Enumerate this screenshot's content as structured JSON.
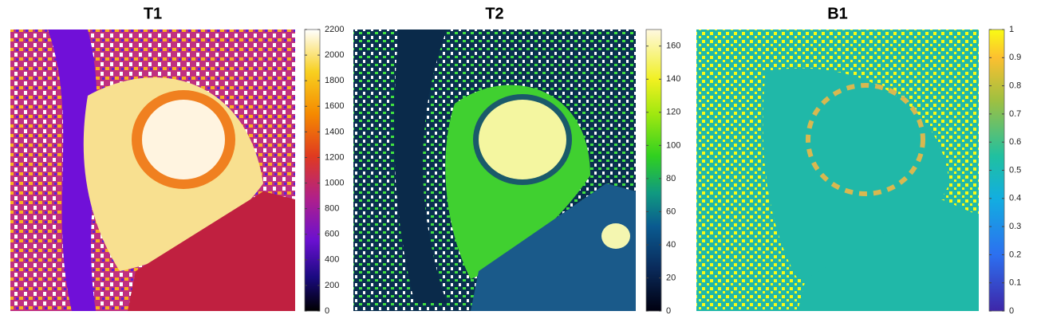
{
  "panels": [
    {
      "title": "T1",
      "colorbar": {
        "lim": [
          0,
          2200
        ],
        "ticks": [
          0,
          200,
          400,
          600,
          800,
          1000,
          1200,
          1400,
          1600,
          1800,
          2000,
          2200
        ]
      }
    },
    {
      "title": "T2",
      "colorbar": {
        "lim": [
          0,
          170
        ],
        "ticks": [
          0,
          20,
          40,
          60,
          80,
          100,
          120,
          140,
          160
        ]
      }
    },
    {
      "title": "B1",
      "colorbar": {
        "lim": [
          0,
          1
        ],
        "ticks": [
          0,
          0.1,
          0.2,
          0.3,
          0.4,
          0.5,
          0.6,
          0.7,
          0.8,
          0.9,
          1
        ]
      }
    }
  ]
}
